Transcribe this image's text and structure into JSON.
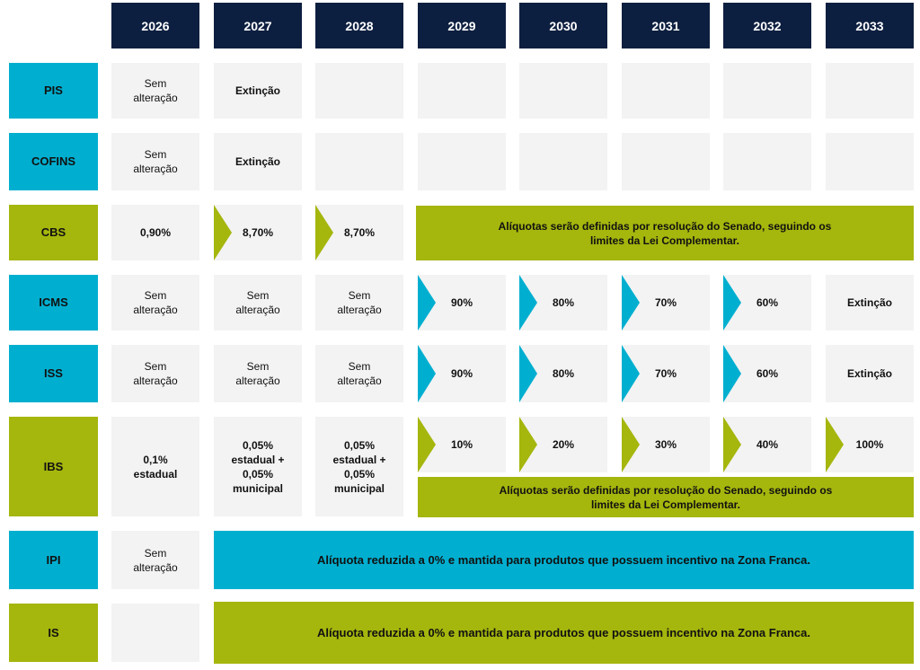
{
  "colors": {
    "header": "#0d1f40",
    "federal": "#00afd0",
    "new_tax": "#a5b60d",
    "empty": "#f3f3f3"
  },
  "years": [
    "2026",
    "2027",
    "2028",
    "2029",
    "2030",
    "2031",
    "2032",
    "2033"
  ],
  "taxes": {
    "pis": {
      "label": "PIS",
      "y2026": "Sem alteração",
      "y2027": "Extinção"
    },
    "cofins": {
      "label": "COFINS",
      "y2026": "Sem alteração",
      "y2027": "Extinção"
    },
    "cbs": {
      "label": "CBS",
      "y2026": "0,90%",
      "y2027": "8,70%",
      "y2028": "8,70%",
      "note": "Alíquotas serão definidas por resolução do Senado, seguindo os limites da Lei Complementar."
    },
    "icms": {
      "label": "ICMS",
      "y2026": "Sem alteração",
      "y2027": "Sem alteração",
      "y2028": "Sem alteração",
      "y2029": "90%",
      "y2030": "80%",
      "y2031": "70%",
      "y2032": "60%",
      "y2033": "Extinção"
    },
    "iss": {
      "label": "ISS",
      "y2026": "Sem alteração",
      "y2027": "Sem alteração",
      "y2028": "Sem alteração",
      "y2029": "90%",
      "y2030": "80%",
      "y2031": "70%",
      "y2032": "60%",
      "y2033": "Extinção"
    },
    "ibs": {
      "label": "IBS",
      "y2026": "0,1% estadual",
      "y2027": "0,05% estadual + 0,05% municipal",
      "y2028": "0,05% estadual + 0,05% municipal",
      "y2029": "10%",
      "y2030": "20%",
      "y2031": "30%",
      "y2032": "40%",
      "y2033": "100%",
      "note": "Alíquotas serão definidas por resolução do Senado, seguindo os limites da Lei Complementar."
    },
    "ipi": {
      "label": "IPI",
      "y2026": "Sem alteração",
      "note": "Alíquota reduzida a 0% e mantida para produtos que possuem incentivo na Zona Franca."
    },
    "is": {
      "label": "IS",
      "note": "Alíquota reduzida a 0% e mantida para produtos que possuem incentivo na Zona Franca."
    }
  }
}
